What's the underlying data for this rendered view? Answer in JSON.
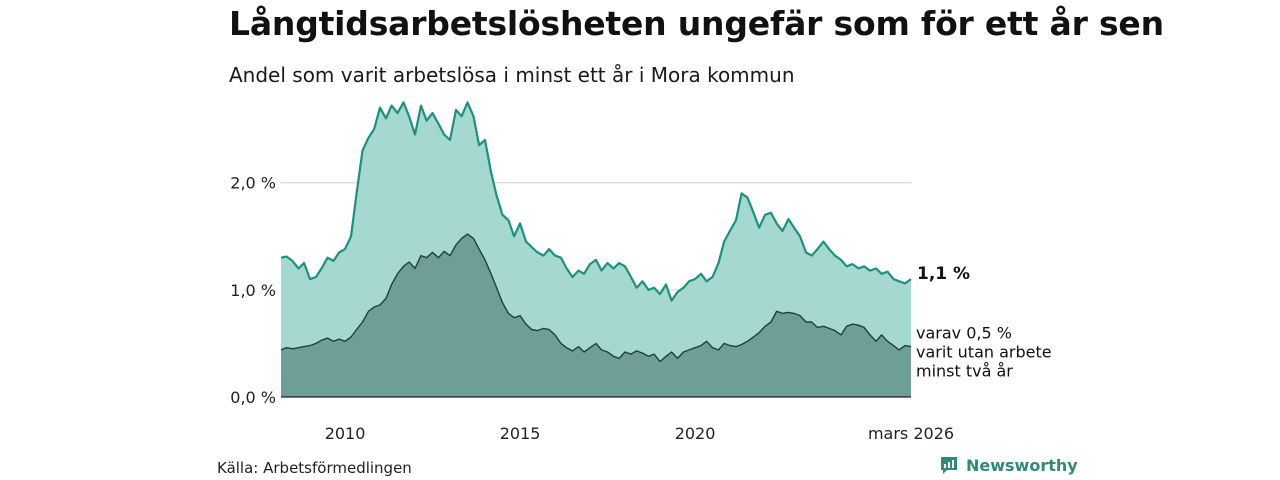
{
  "title": "Långtidsarbetslösheten ungefär som för ett år sen",
  "subtitle": "Andel som varit arbetslösa i minst ett år i Mora kommun",
  "source": "Källa: Arbetsförmedlingen",
  "brand": {
    "name": "Newsworthy",
    "icon": "newsworthy-logo-icon"
  },
  "colors": {
    "total_line": "#1f8f80",
    "total_fill": "#a5d8d1",
    "long_line": "#1f3f3a",
    "long_fill": "#6f9e97",
    "grid": "#d0d0d0",
    "brand": "#2e8b7a"
  },
  "chart_data": {
    "type": "area",
    "title": "Långtidsarbetslösheten ungefär som för ett år sen",
    "subtitle": "Andel som varit arbetslösa i minst ett år i Mora kommun",
    "xlabel": "",
    "ylabel": "",
    "x_range": [
      2008.17,
      2026.17
    ],
    "ylim": [
      0,
      2.8
    ],
    "y_ticks": [
      {
        "value": 0.0,
        "label": "0,0 %"
      },
      {
        "value": 1.0,
        "label": "1,0 %"
      },
      {
        "value": 2.0,
        "label": "2,0 %"
      }
    ],
    "x_ticks": [
      {
        "value": 2010,
        "label": "2010"
      },
      {
        "value": 2015,
        "label": "2015"
      },
      {
        "value": 2020,
        "label": "2020"
      },
      {
        "value": 2026.17,
        "label": "mars 2026"
      }
    ],
    "series": [
      {
        "name": "Arbetslösa minst ett år",
        "end_label": "1,1 %",
        "points": [
          [
            2008.17,
            1.3
          ],
          [
            2008.33,
            1.31
          ],
          [
            2008.5,
            1.27
          ],
          [
            2008.67,
            1.2
          ],
          [
            2008.83,
            1.25
          ],
          [
            2009.0,
            1.1
          ],
          [
            2009.17,
            1.12
          ],
          [
            2009.33,
            1.2
          ],
          [
            2009.5,
            1.3
          ],
          [
            2009.67,
            1.27
          ],
          [
            2009.83,
            1.35
          ],
          [
            2010.0,
            1.38
          ],
          [
            2010.17,
            1.5
          ],
          [
            2010.33,
            1.9
          ],
          [
            2010.5,
            2.3
          ],
          [
            2010.67,
            2.42
          ],
          [
            2010.83,
            2.5
          ],
          [
            2011.0,
            2.7
          ],
          [
            2011.17,
            2.6
          ],
          [
            2011.33,
            2.72
          ],
          [
            2011.5,
            2.65
          ],
          [
            2011.67,
            2.75
          ],
          [
            2011.83,
            2.62
          ],
          [
            2012.0,
            2.45
          ],
          [
            2012.17,
            2.72
          ],
          [
            2012.33,
            2.58
          ],
          [
            2012.5,
            2.65
          ],
          [
            2012.67,
            2.55
          ],
          [
            2012.83,
            2.45
          ],
          [
            2013.0,
            2.4
          ],
          [
            2013.17,
            2.68
          ],
          [
            2013.33,
            2.62
          ],
          [
            2013.5,
            2.75
          ],
          [
            2013.67,
            2.62
          ],
          [
            2013.83,
            2.35
          ],
          [
            2014.0,
            2.4
          ],
          [
            2014.17,
            2.1
          ],
          [
            2014.33,
            1.88
          ],
          [
            2014.5,
            1.7
          ],
          [
            2014.67,
            1.65
          ],
          [
            2014.83,
            1.5
          ],
          [
            2015.0,
            1.62
          ],
          [
            2015.17,
            1.45
          ],
          [
            2015.33,
            1.4
          ],
          [
            2015.5,
            1.35
          ],
          [
            2015.67,
            1.32
          ],
          [
            2015.83,
            1.38
          ],
          [
            2016.0,
            1.32
          ],
          [
            2016.17,
            1.3
          ],
          [
            2016.33,
            1.2
          ],
          [
            2016.5,
            1.12
          ],
          [
            2016.67,
            1.18
          ],
          [
            2016.83,
            1.15
          ],
          [
            2017.0,
            1.24
          ],
          [
            2017.17,
            1.28
          ],
          [
            2017.33,
            1.18
          ],
          [
            2017.5,
            1.25
          ],
          [
            2017.67,
            1.2
          ],
          [
            2017.83,
            1.25
          ],
          [
            2018.0,
            1.22
          ],
          [
            2018.17,
            1.12
          ],
          [
            2018.33,
            1.02
          ],
          [
            2018.5,
            1.08
          ],
          [
            2018.67,
            1.0
          ],
          [
            2018.83,
            1.02
          ],
          [
            2019.0,
            0.96
          ],
          [
            2019.17,
            1.05
          ],
          [
            2019.33,
            0.9
          ],
          [
            2019.5,
            0.98
          ],
          [
            2019.67,
            1.02
          ],
          [
            2019.83,
            1.08
          ],
          [
            2020.0,
            1.1
          ],
          [
            2020.17,
            1.15
          ],
          [
            2020.33,
            1.08
          ],
          [
            2020.5,
            1.12
          ],
          [
            2020.67,
            1.25
          ],
          [
            2020.83,
            1.45
          ],
          [
            2021.0,
            1.55
          ],
          [
            2021.17,
            1.65
          ],
          [
            2021.33,
            1.9
          ],
          [
            2021.5,
            1.86
          ],
          [
            2021.67,
            1.72
          ],
          [
            2021.83,
            1.58
          ],
          [
            2022.0,
            1.7
          ],
          [
            2022.17,
            1.72
          ],
          [
            2022.33,
            1.62
          ],
          [
            2022.5,
            1.55
          ],
          [
            2022.67,
            1.66
          ],
          [
            2022.83,
            1.58
          ],
          [
            2023.0,
            1.5
          ],
          [
            2023.17,
            1.35
          ],
          [
            2023.33,
            1.32
          ],
          [
            2023.5,
            1.38
          ],
          [
            2023.67,
            1.45
          ],
          [
            2023.83,
            1.38
          ],
          [
            2024.0,
            1.32
          ],
          [
            2024.17,
            1.28
          ],
          [
            2024.33,
            1.22
          ],
          [
            2024.5,
            1.24
          ],
          [
            2024.67,
            1.2
          ],
          [
            2024.83,
            1.22
          ],
          [
            2025.0,
            1.18
          ],
          [
            2025.17,
            1.2
          ],
          [
            2025.33,
            1.15
          ],
          [
            2025.5,
            1.17
          ],
          [
            2025.67,
            1.1
          ],
          [
            2025.83,
            1.08
          ],
          [
            2026.0,
            1.06
          ],
          [
            2026.17,
            1.1
          ]
        ]
      },
      {
        "name": "varav utan arbete minst två år",
        "end_label": [
          "varav 0,5 %",
          "varit utan arbete",
          "minst två år"
        ],
        "points": [
          [
            2008.17,
            0.44
          ],
          [
            2008.33,
            0.46
          ],
          [
            2008.5,
            0.45
          ],
          [
            2008.67,
            0.46
          ],
          [
            2008.83,
            0.47
          ],
          [
            2009.0,
            0.48
          ],
          [
            2009.17,
            0.5
          ],
          [
            2009.33,
            0.53
          ],
          [
            2009.5,
            0.55
          ],
          [
            2009.67,
            0.52
          ],
          [
            2009.83,
            0.54
          ],
          [
            2010.0,
            0.52
          ],
          [
            2010.17,
            0.56
          ],
          [
            2010.33,
            0.63
          ],
          [
            2010.5,
            0.7
          ],
          [
            2010.67,
            0.8
          ],
          [
            2010.83,
            0.84
          ],
          [
            2011.0,
            0.86
          ],
          [
            2011.17,
            0.92
          ],
          [
            2011.33,
            1.05
          ],
          [
            2011.5,
            1.15
          ],
          [
            2011.67,
            1.22
          ],
          [
            2011.83,
            1.26
          ],
          [
            2012.0,
            1.2
          ],
          [
            2012.17,
            1.32
          ],
          [
            2012.33,
            1.3
          ],
          [
            2012.5,
            1.35
          ],
          [
            2012.67,
            1.3
          ],
          [
            2012.83,
            1.36
          ],
          [
            2013.0,
            1.32
          ],
          [
            2013.17,
            1.42
          ],
          [
            2013.33,
            1.48
          ],
          [
            2013.5,
            1.52
          ],
          [
            2013.67,
            1.48
          ],
          [
            2013.83,
            1.38
          ],
          [
            2014.0,
            1.28
          ],
          [
            2014.17,
            1.15
          ],
          [
            2014.33,
            1.02
          ],
          [
            2014.5,
            0.88
          ],
          [
            2014.67,
            0.78
          ],
          [
            2014.83,
            0.74
          ],
          [
            2015.0,
            0.76
          ],
          [
            2015.17,
            0.68
          ],
          [
            2015.33,
            0.63
          ],
          [
            2015.5,
            0.62
          ],
          [
            2015.67,
            0.64
          ],
          [
            2015.83,
            0.63
          ],
          [
            2016.0,
            0.58
          ],
          [
            2016.17,
            0.5
          ],
          [
            2016.33,
            0.46
          ],
          [
            2016.5,
            0.43
          ],
          [
            2016.67,
            0.47
          ],
          [
            2016.83,
            0.42
          ],
          [
            2017.0,
            0.46
          ],
          [
            2017.17,
            0.5
          ],
          [
            2017.33,
            0.44
          ],
          [
            2017.5,
            0.42
          ],
          [
            2017.67,
            0.38
          ],
          [
            2017.83,
            0.36
          ],
          [
            2018.0,
            0.42
          ],
          [
            2018.17,
            0.4
          ],
          [
            2018.33,
            0.43
          ],
          [
            2018.5,
            0.41
          ],
          [
            2018.67,
            0.38
          ],
          [
            2018.83,
            0.4
          ],
          [
            2019.0,
            0.33
          ],
          [
            2019.17,
            0.38
          ],
          [
            2019.33,
            0.42
          ],
          [
            2019.5,
            0.36
          ],
          [
            2019.67,
            0.42
          ],
          [
            2019.83,
            0.44
          ],
          [
            2020.0,
            0.46
          ],
          [
            2020.17,
            0.48
          ],
          [
            2020.33,
            0.52
          ],
          [
            2020.5,
            0.46
          ],
          [
            2020.67,
            0.44
          ],
          [
            2020.83,
            0.5
          ],
          [
            2021.0,
            0.48
          ],
          [
            2021.17,
            0.47
          ],
          [
            2021.33,
            0.49
          ],
          [
            2021.5,
            0.52
          ],
          [
            2021.67,
            0.56
          ],
          [
            2021.83,
            0.6
          ],
          [
            2022.0,
            0.66
          ],
          [
            2022.17,
            0.7
          ],
          [
            2022.33,
            0.8
          ],
          [
            2022.5,
            0.78
          ],
          [
            2022.67,
            0.79
          ],
          [
            2022.83,
            0.78
          ],
          [
            2023.0,
            0.76
          ],
          [
            2023.17,
            0.7
          ],
          [
            2023.33,
            0.7
          ],
          [
            2023.5,
            0.65
          ],
          [
            2023.67,
            0.66
          ],
          [
            2023.83,
            0.64
          ],
          [
            2024.0,
            0.62
          ],
          [
            2024.17,
            0.58
          ],
          [
            2024.33,
            0.66
          ],
          [
            2024.5,
            0.68
          ],
          [
            2024.67,
            0.67
          ],
          [
            2024.83,
            0.65
          ],
          [
            2025.0,
            0.58
          ],
          [
            2025.17,
            0.52
          ],
          [
            2025.33,
            0.58
          ],
          [
            2025.5,
            0.52
          ],
          [
            2025.67,
            0.48
          ],
          [
            2025.83,
            0.44
          ],
          [
            2026.0,
            0.48
          ],
          [
            2026.17,
            0.47
          ]
        ]
      }
    ]
  }
}
